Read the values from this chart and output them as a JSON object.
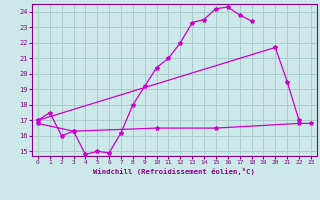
{
  "xlabel": "Windchill (Refroidissement éolien,°C)",
  "bg_color": "#cde8e8",
  "grid_color": "#aacccc",
  "line_color": "#cc00cc",
  "line_color2": "#880088",
  "xmin": -0.5,
  "xmax": 23.5,
  "ymin": 14.7,
  "ymax": 24.5,
  "yticks": [
    15,
    16,
    17,
    18,
    19,
    20,
    21,
    22,
    23,
    24
  ],
  "xticks": [
    0,
    1,
    2,
    3,
    4,
    5,
    6,
    7,
    8,
    9,
    10,
    11,
    12,
    13,
    14,
    15,
    16,
    17,
    18,
    19,
    20,
    21,
    22,
    23
  ],
  "line1_x": [
    0,
    1,
    2,
    3,
    4,
    5,
    6,
    7,
    8,
    9,
    10,
    11,
    12,
    13,
    14,
    15,
    16,
    17,
    18
  ],
  "line1_y": [
    17.0,
    17.5,
    16.0,
    16.3,
    14.8,
    15.0,
    14.9,
    16.2,
    18.0,
    19.2,
    20.4,
    21.0,
    22.0,
    23.3,
    23.5,
    24.2,
    24.3,
    23.8,
    23.4
  ],
  "line2_x": [
    0,
    20,
    21,
    22
  ],
  "line2_y": [
    17.0,
    21.7,
    19.5,
    17.0
  ],
  "line3_x": [
    0,
    3,
    10,
    15,
    22,
    23
  ],
  "line3_y": [
    16.8,
    16.3,
    16.5,
    16.5,
    16.8,
    16.8
  ]
}
